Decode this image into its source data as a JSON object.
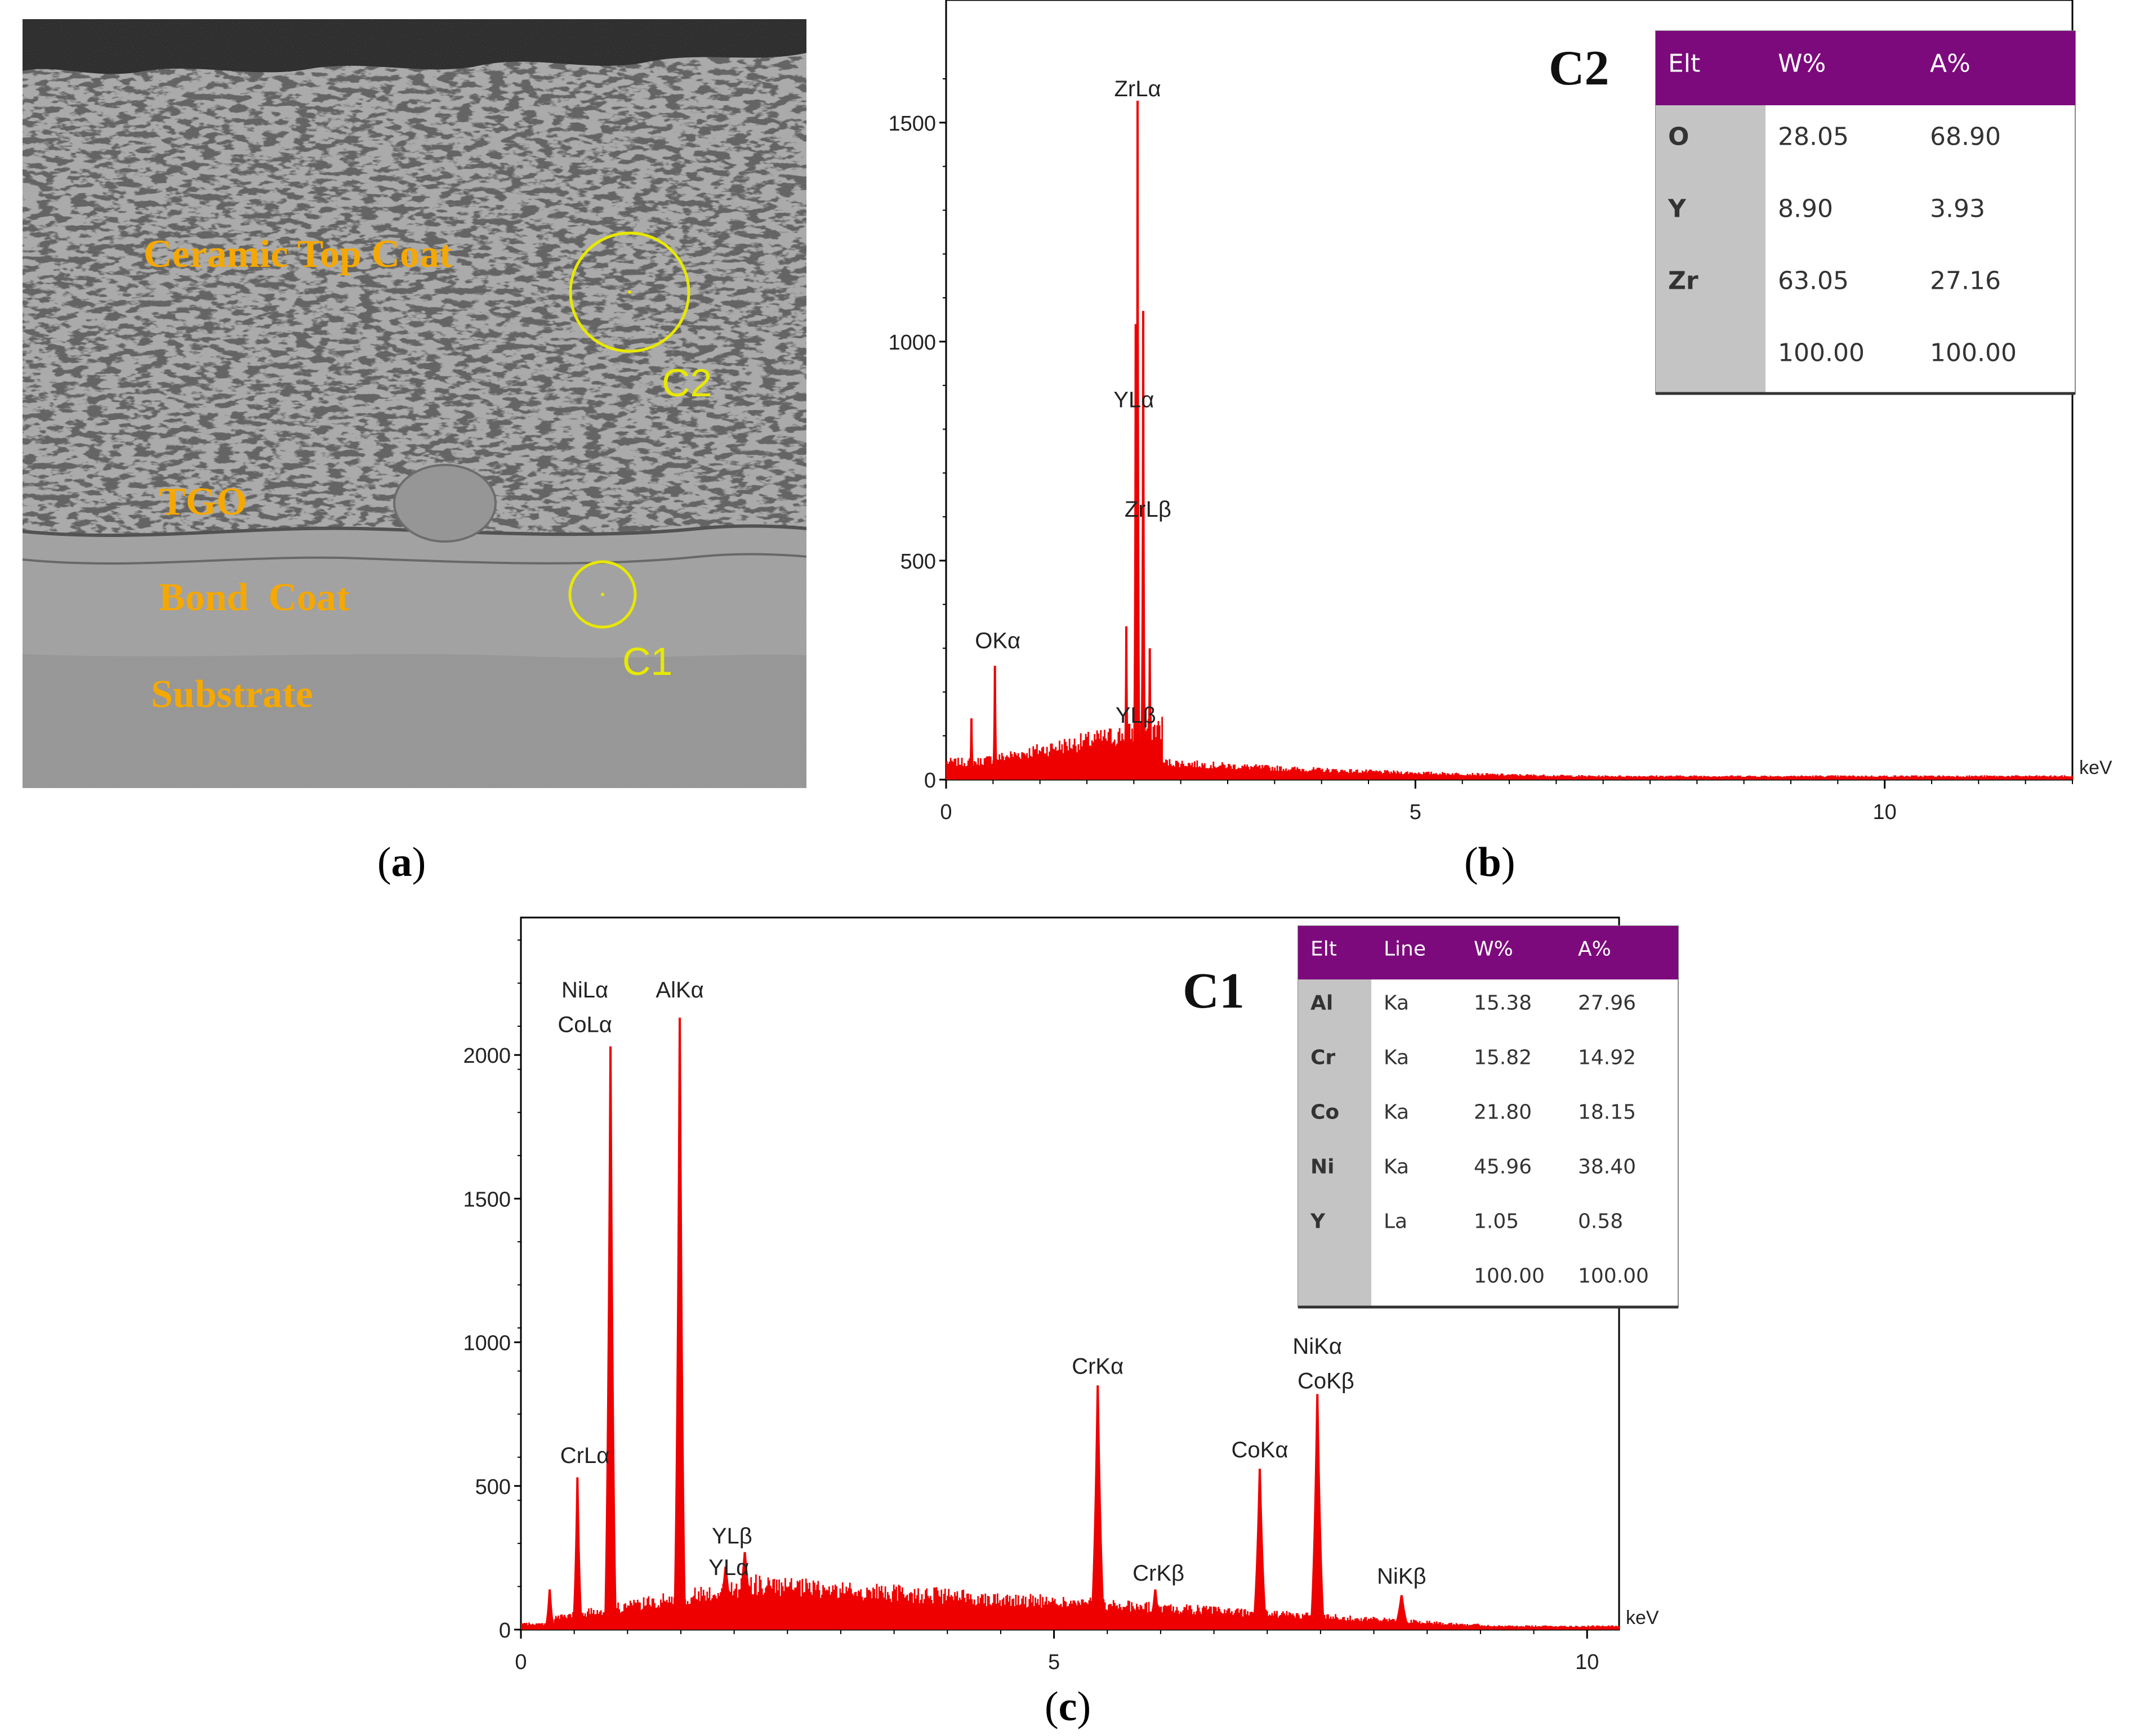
{
  "panels": {
    "a": {
      "label_open": "(",
      "label_letter": "a",
      "label_close": ")",
      "annotations": {
        "ceramic": "Ceramic Top Coat",
        "tgo": "TGO",
        "bond": "Bond  Coat",
        "substrate": "Substrate",
        "c1": "C1",
        "c2": "C2"
      },
      "colors": {
        "label": "#f5a800",
        "marker": "#e8e800",
        "background": "#9a9a9a",
        "substrate": "#8a8a8a"
      }
    },
    "b": {
      "label_open": "(",
      "label_letter": "b",
      "label_close": ")"
    },
    "c": {
      "label_open": "(",
      "label_letter": "c",
      "label_close": ")"
    }
  },
  "chart_data": [
    {
      "id": "b",
      "type": "bar",
      "title": "C2",
      "xlabel": "keV",
      "xlim": [
        0,
        12
      ],
      "ylim": [
        0,
        1600
      ],
      "x_ticks": [
        0,
        5,
        10
      ],
      "y_ticks": [
        0,
        500,
        1000,
        1500
      ],
      "color": "#ee0000",
      "peaks": [
        {
          "x": 0.27,
          "y": 140
        },
        {
          "x": 0.52,
          "y": 260
        },
        {
          "x": 1.92,
          "y": 350
        },
        {
          "x": 2.02,
          "y": 1040
        },
        {
          "x": 2.04,
          "y": 1550
        },
        {
          "x": 2.1,
          "y": 1070
        },
        {
          "x": 2.17,
          "y": 300
        }
      ],
      "peak_labels": [
        {
          "text": "ZrLα",
          "x": 2.04,
          "y": 1560
        },
        {
          "text": "YLα",
          "x": 2.0,
          "y": 850
        },
        {
          "text": "ZrLβ",
          "x": 2.15,
          "y": 600
        },
        {
          "text": "OKα",
          "x": 0.55,
          "y": 300
        },
        {
          "text": "YLβ",
          "x": 2.02,
          "y": 130
        }
      ],
      "table": {
        "headers": [
          "Elt",
          "W%",
          "A%"
        ],
        "rows": [
          [
            "O",
            "28.05",
            "68.90"
          ],
          [
            "Y",
            "8.90",
            "3.93"
          ],
          [
            "Zr",
            "63.05",
            "27.16"
          ],
          [
            "",
            "100.00",
            "100.00"
          ]
        ],
        "header_color": "#7d0a7d"
      }
    },
    {
      "id": "c",
      "type": "bar",
      "title": "C1",
      "xlabel": "keV",
      "xlim": [
        0,
        10.3
      ],
      "ylim": [
        0,
        2400
      ],
      "x_ticks": [
        0,
        5,
        10
      ],
      "y_ticks": [
        0,
        500,
        1000,
        1500,
        2000
      ],
      "color": "#ee0000",
      "peaks": [
        {
          "x": 0.27,
          "y": 140,
          "w": 0.05
        },
        {
          "x": 0.53,
          "y": 530,
          "w": 0.05
        },
        {
          "x": 0.84,
          "y": 2030,
          "w": 0.06
        },
        {
          "x": 1.49,
          "y": 2130,
          "w": 0.06
        },
        {
          "x": 1.92,
          "y": 220,
          "w": 0.1
        },
        {
          "x": 2.1,
          "y": 270,
          "w": 0.1
        },
        {
          "x": 5.41,
          "y": 850,
          "w": 0.07
        },
        {
          "x": 5.95,
          "y": 140,
          "w": 0.07
        },
        {
          "x": 6.93,
          "y": 560,
          "w": 0.07
        },
        {
          "x": 7.47,
          "y": 820,
          "w": 0.07
        },
        {
          "x": 8.26,
          "y": 120,
          "w": 0.08
        }
      ],
      "peak_labels": [
        {
          "text": "NiLα",
          "x": 0.6,
          "y": 2200
        },
        {
          "text": "CoLα",
          "x": 0.6,
          "y": 2080
        },
        {
          "text": "AlKα",
          "x": 1.49,
          "y": 2200
        },
        {
          "text": "CrLα",
          "x": 0.6,
          "y": 580
        },
        {
          "text": "YLβ",
          "x": 1.98,
          "y": 300
        },
        {
          "text": "YLα",
          "x": 1.95,
          "y": 190
        },
        {
          "text": "CrKα",
          "x": 5.41,
          "y": 890
        },
        {
          "text": "CrKβ",
          "x": 5.98,
          "y": 170
        },
        {
          "text": "CoKα",
          "x": 6.93,
          "y": 600
        },
        {
          "text": "NiKα",
          "x": 7.47,
          "y": 960
        },
        {
          "text": "CoKβ",
          "x": 7.55,
          "y": 840
        },
        {
          "text": "NiKβ",
          "x": 8.26,
          "y": 160
        }
      ],
      "table": {
        "headers": [
          "Elt",
          "Line",
          "W%",
          "A%"
        ],
        "rows": [
          [
            "Al",
            "Ka",
            "15.38",
            "27.96"
          ],
          [
            "Cr",
            "Ka",
            "15.82",
            "14.92"
          ],
          [
            "Co",
            "Ka",
            "21.80",
            "18.15"
          ],
          [
            "Ni",
            "Ka",
            "45.96",
            "38.40"
          ],
          [
            "Y",
            "La",
            "1.05",
            "0.58"
          ],
          [
            "",
            "",
            "100.00",
            "100.00"
          ]
        ],
        "header_color": "#7d0a7d"
      }
    }
  ]
}
